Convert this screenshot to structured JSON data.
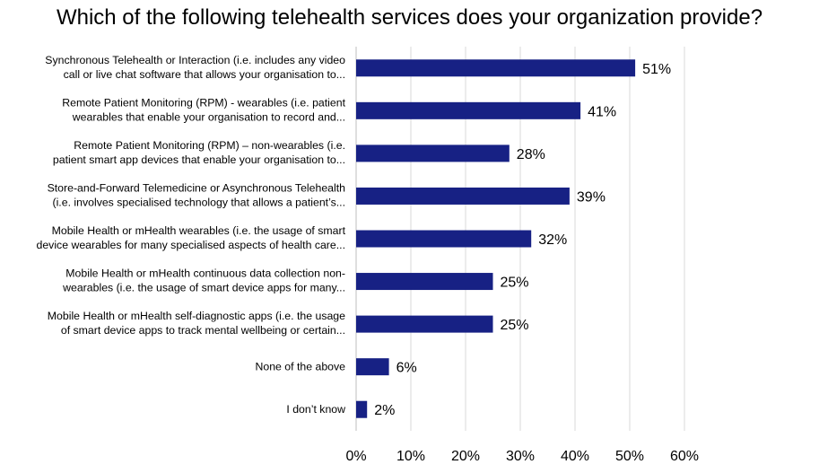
{
  "chart_data": {
    "type": "bar",
    "orientation": "horizontal",
    "title": "Which of the following telehealth services does your organization provide?",
    "xlabel": "",
    "ylabel": "",
    "xlim": [
      0,
      60
    ],
    "grid": true,
    "bar_color": "#172184",
    "categories": [
      [
        "Synchronous Telehealth or Interaction (i.e. includes any video",
        "call or live chat software that allows your organisation to..."
      ],
      [
        "Remote Patient Monitoring (RPM) - wearables (i.e. patient",
        "wearables that enable your organisation to record and..."
      ],
      [
        "Remote Patient Monitoring (RPM) – non-wearables (i.e.",
        "patient smart app devices that enable your organisation to..."
      ],
      [
        "Store-and-Forward Telemedicine or Asynchronous Telehealth",
        "(i.e. involves specialised technology that allows a patient’s..."
      ],
      [
        "Mobile Health or mHealth wearables (i.e. the usage of smart",
        "device wearables for many specialised aspects of health care..."
      ],
      [
        "Mobile Health or mHealth continuous data collection non-",
        "wearables (i.e. the usage of smart device apps for many..."
      ],
      [
        "Mobile Health or mHealth self-diagnostic apps (i.e. the usage",
        "of smart device apps to track mental wellbeing or certain..."
      ],
      [
        "None of the above"
      ],
      [
        "I don’t know"
      ]
    ],
    "values": [
      51,
      41,
      28,
      39,
      32,
      25,
      25,
      6,
      2
    ],
    "data_labels": [
      "51%",
      "41%",
      "28%",
      "39%",
      "32%",
      "25%",
      "25%",
      "6%",
      "2%"
    ],
    "ticks": [
      0,
      10,
      20,
      30,
      40,
      50,
      60
    ],
    "tick_labels": [
      "0%",
      "10%",
      "20%",
      "30%",
      "40%",
      "50%",
      "60%"
    ]
  }
}
